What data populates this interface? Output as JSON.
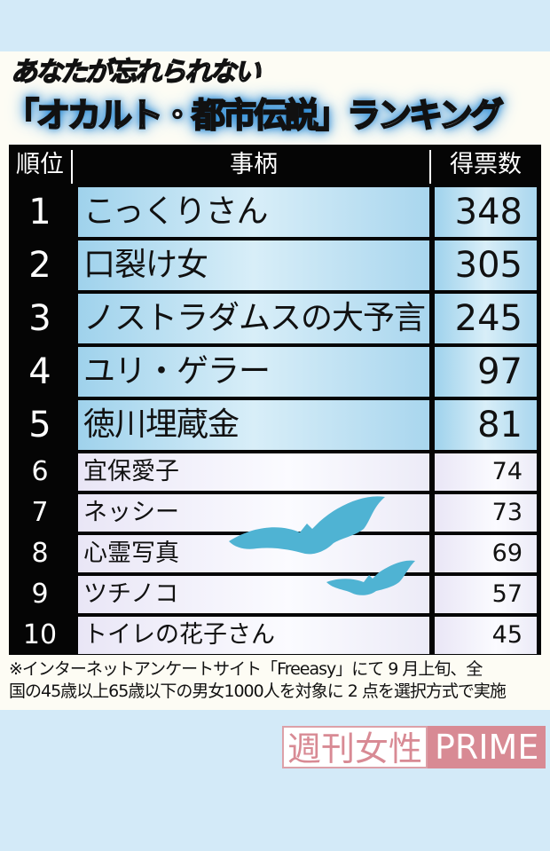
{
  "title_line1": "あなたが忘れられない",
  "title_line2": "「オカルト・都市伝説」ランキング",
  "chart_data": {
    "type": "table",
    "columns": [
      "順位",
      "事柄",
      "得票数"
    ],
    "rows": [
      {
        "rank": "1",
        "item": "こっくりさん",
        "votes": "348"
      },
      {
        "rank": "2",
        "item": "口裂け女",
        "votes": "305"
      },
      {
        "rank": "3",
        "item": "ノストラダムスの大予言",
        "votes": "245"
      },
      {
        "rank": "4",
        "item": "ユリ・ゲラー",
        "votes": "97"
      },
      {
        "rank": "5",
        "item": "徳川埋蔵金",
        "votes": "81"
      },
      {
        "rank": "6",
        "item": "宜保愛子",
        "votes": "74"
      },
      {
        "rank": "7",
        "item": "ネッシー",
        "votes": "73"
      },
      {
        "rank": "8",
        "item": "心霊写真",
        "votes": "69"
      },
      {
        "rank": "9",
        "item": "ツチノコ",
        "votes": "57"
      },
      {
        "rank": "10",
        "item": "トイレの花子さん",
        "votes": "45"
      }
    ]
  },
  "note_line1": "※インターネットアンケートサイト「Freeasy」にて 9 月上旬、全",
  "note_line2": "国の45歳以上65歳以下の男女1000人を対象に 2 点を選択方式で実施",
  "logo": {
    "part1": "週刊女性",
    "part2": "PRIME"
  },
  "colors": {
    "background": "#d3eaf8",
    "table": "#050505",
    "bat": "#4fb3d3",
    "logo": "#d88a94"
  }
}
